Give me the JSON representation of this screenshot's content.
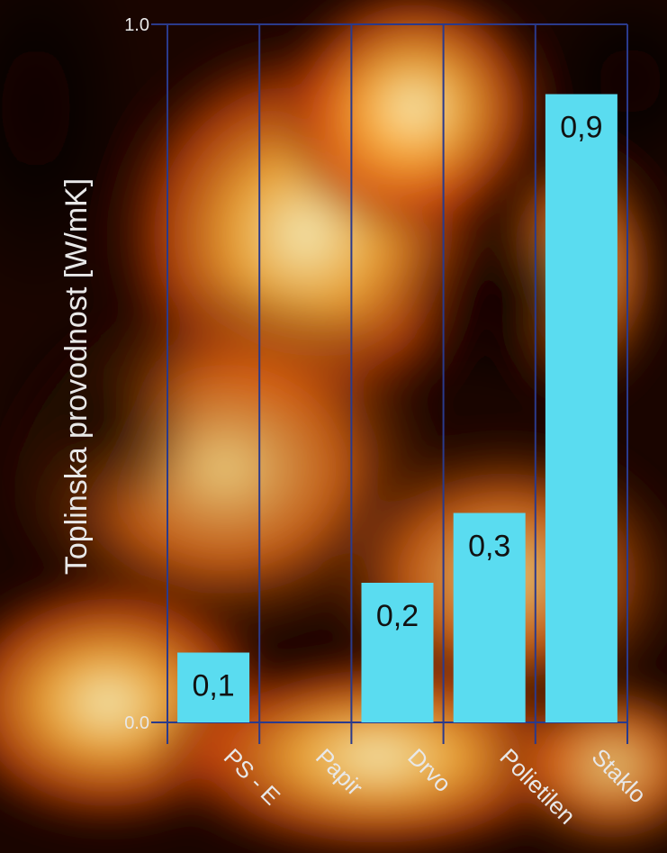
{
  "chart_data": {
    "type": "bar",
    "categories": [
      "PS - E",
      "Papir",
      "Drvo",
      "Polietilen",
      "Staklo"
    ],
    "values": [
      0.1,
      null,
      0.2,
      0.3,
      0.9
    ],
    "data_labels": [
      "0,1",
      "",
      "0,2",
      "0,3",
      "0,9"
    ],
    "ylabel": "Toplinska provodnost [W/mK]",
    "xlabel": "",
    "ylim": [
      0,
      1
    ],
    "y_ticks": [
      "0.0",
      "1.0"
    ],
    "grid": true,
    "bar_color": "#5adcf0",
    "grid_color": "#2a3a8c",
    "label_color": "#e8e8e8"
  }
}
